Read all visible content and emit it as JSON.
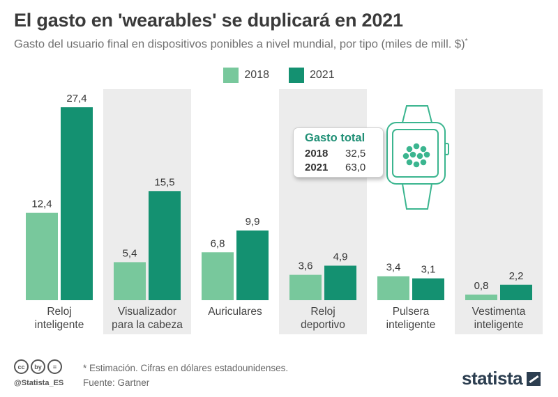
{
  "title": "El gasto en 'wearables' se duplicará en 2021",
  "subtitle": "Gasto del usuario final en dispositivos ponibles a nivel mundial, por tipo (miles de mill. $)",
  "subtitle_mark": "*",
  "colors": {
    "s2018": "#78c89c",
    "s2021": "#149171",
    "panel": "#ececec",
    "watch": "#3bb58f"
  },
  "legend": [
    {
      "label": "2018"
    },
    {
      "label": "2021"
    }
  ],
  "chart_data": {
    "type": "bar",
    "categories": [
      "Reloj\ninteligente",
      "Visualizador\npara la cabeza",
      "Auriculares",
      "Reloj\ndeportivo",
      "Pulsera\ninteligente",
      "Vestimenta\ninteligente"
    ],
    "series": [
      {
        "name": "2018",
        "values": [
          12.4,
          5.4,
          6.8,
          3.6,
          3.4,
          0.8
        ],
        "labels": [
          "12,4",
          "5,4",
          "6,8",
          "3,6",
          "3,4",
          "0,8"
        ]
      },
      {
        "name": "2021",
        "values": [
          27.4,
          15.5,
          9.9,
          4.9,
          3.1,
          2.2
        ],
        "labels": [
          "27,4",
          "15,5",
          "9,9",
          "4,9",
          "3,1",
          "2,2"
        ]
      }
    ],
    "ylim": [
      0,
      30
    ],
    "grid": false,
    "legend_position": "top-center"
  },
  "totals": {
    "title": "Gasto total",
    "rows": [
      {
        "year": "2018",
        "value": "32,5"
      },
      {
        "year": "2021",
        "value": "63,0"
      }
    ]
  },
  "footer": {
    "note": "* Estimación. Cifras en dólares estadounidenses.",
    "source": "Fuente: Gartner",
    "handle": "@Statista_ES",
    "cc_icons": [
      "cc",
      "by",
      "="
    ],
    "brand": "statista"
  }
}
